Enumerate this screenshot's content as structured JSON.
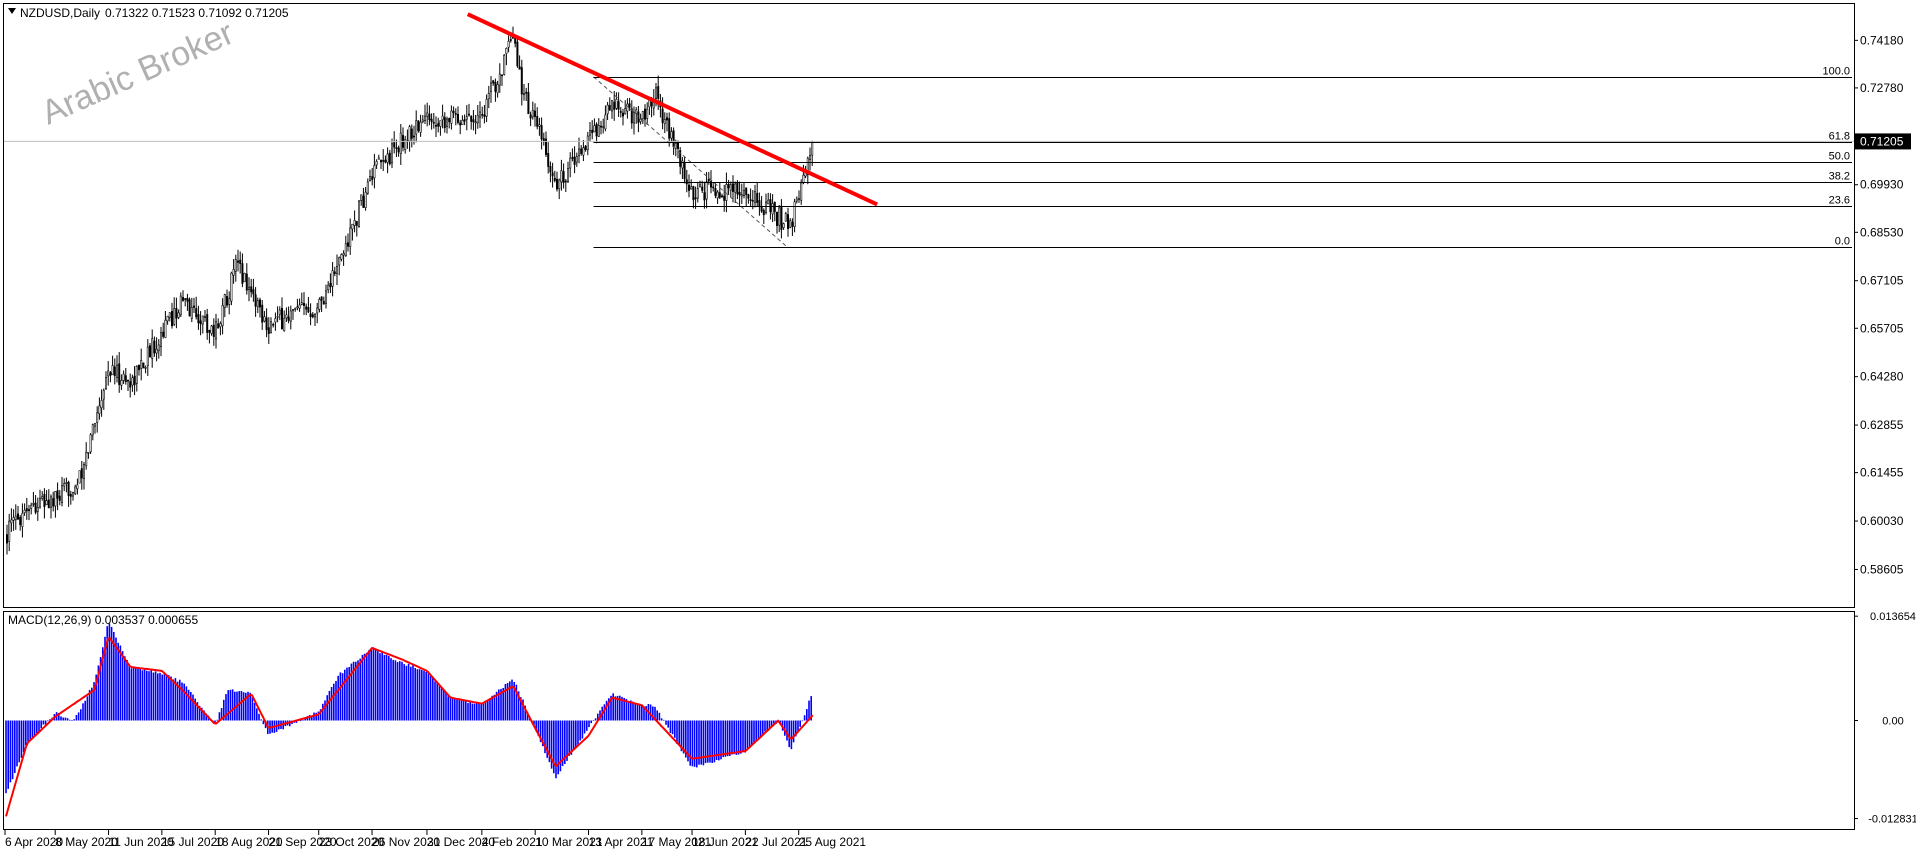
{
  "header": {
    "symbol": "NZDUSD,Daily",
    "ohlc": "0.71322 0.71523 0.71092 0.71205"
  },
  "watermark": "Arabic Broker",
  "price_axis": {
    "ticks": [
      "0.74180",
      "0.72780",
      "0.71205",
      "0.69930",
      "0.68530",
      "0.67105",
      "0.65705",
      "0.64280",
      "0.62855",
      "0.61455",
      "0.60030",
      "0.58605"
    ],
    "current": "0.71205"
  },
  "macd": {
    "label": "MACD(12,26,9) 0.003537 0.000655",
    "ticks": [
      "0.013654",
      "0.00",
      "-0.012831"
    ]
  },
  "fib_labels": [
    "100.0",
    "61.8",
    "50.0",
    "38.2",
    "23.6",
    "0.0"
  ],
  "time_axis": [
    "6 Apr 2020",
    "8 May 2020",
    "11 Jun 2020",
    "15 Jul 2020",
    "18 Aug 2020",
    "21 Sep 2020",
    "23 Oct 2020",
    "26 Nov 2020",
    "31 Dec 2020",
    "4 Feb 2021",
    "10 Mar 2021",
    "13 Apr 2021",
    "17 May 2021",
    "18 Jun 2021",
    "22 Jul 2021",
    "25 Aug 2021"
  ],
  "colors": {
    "trendline": "#ff0000",
    "histogram": "#0000ff",
    "signal": "#ff0000",
    "candles": "#000000"
  },
  "chart_data": {
    "type": "candlestick",
    "symbol": "NZDUSD",
    "timeframe": "Daily",
    "price_range": [
      0.575,
      0.7525
    ],
    "close_path": [
      {
        "date": "6 Apr 2020",
        "close": 0.596
      },
      {
        "date": "20 Apr 2020",
        "close": 0.605
      },
      {
        "date": "8 May 2020",
        "close": 0.606
      },
      {
        "date": "25 May 2020",
        "close": 0.613
      },
      {
        "date": "2 Jun 2020",
        "close": 0.63
      },
      {
        "date": "11 Jun 2020",
        "close": 0.645
      },
      {
        "date": "25 Jun 2020",
        "close": 0.641
      },
      {
        "date": "15 Jul 2020",
        "close": 0.656
      },
      {
        "date": "28 Jul 2020",
        "close": 0.665
      },
      {
        "date": "18 Aug 2020",
        "close": 0.656
      },
      {
        "date": "1 Sep 2020",
        "close": 0.676
      },
      {
        "date": "21 Sep 2020",
        "close": 0.658
      },
      {
        "date": "6 Oct 2020",
        "close": 0.661
      },
      {
        "date": "23 Oct 2020",
        "close": 0.664
      },
      {
        "date": "5 Nov 2020",
        "close": 0.676
      },
      {
        "date": "26 Nov 2020",
        "close": 0.702
      },
      {
        "date": "15 Dec 2020",
        "close": 0.712
      },
      {
        "date": "31 Dec 2020",
        "close": 0.719
      },
      {
        "date": "15 Jan 2021",
        "close": 0.719
      },
      {
        "date": "4 Feb 2021",
        "close": 0.72
      },
      {
        "date": "24 Feb 2021",
        "close": 0.742
      },
      {
        "date": "3 Mar 2021",
        "close": 0.725
      },
      {
        "date": "10 Mar 2021",
        "close": 0.718
      },
      {
        "date": "23 Mar 2021",
        "close": 0.699
      },
      {
        "date": "13 Apr 2021",
        "close": 0.713
      },
      {
        "date": "28 Apr 2021",
        "close": 0.722
      },
      {
        "date": "17 May 2021",
        "close": 0.719
      },
      {
        "date": "25 May 2021",
        "close": 0.727
      },
      {
        "date": "18 Jun 2021",
        "close": 0.696
      },
      {
        "date": "1 Jul 2021",
        "close": 0.698
      },
      {
        "date": "22 Jul 2021",
        "close": 0.697
      },
      {
        "date": "20 Aug 2021",
        "close": 0.687
      },
      {
        "date": "25 Aug 2021",
        "close": 0.697
      },
      {
        "date": "3 Sep 2021",
        "close": 0.712
      }
    ],
    "fibonacci": {
      "high": 0.7311,
      "low": 0.6811,
      "levels": [
        {
          "label": "100.0",
          "price": 0.7311
        },
        {
          "label": "61.8",
          "price": 0.712
        },
        {
          "label": "50.0",
          "price": 0.7061
        },
        {
          "label": "38.2",
          "price": 0.7002
        },
        {
          "label": "23.6",
          "price": 0.6929
        },
        {
          "label": "0.0",
          "price": 0.6811
        }
      ]
    },
    "trendline": {
      "start": {
        "date": "26 Jan 2021",
        "price": 0.7495
      },
      "end": {
        "date": "14 Oct 2021",
        "price": 0.6935
      }
    },
    "macd": {
      "range": [
        -0.0142,
        0.0142
      ],
      "histogram": [
        {
          "date": "6 Apr 2020",
          "value": -0.01
        },
        {
          "date": "20 Apr 2020",
          "value": -0.003
        },
        {
          "date": "8 May 2020",
          "value": 0.001
        },
        {
          "date": "20 May 2020",
          "value": 0.0
        },
        {
          "date": "2 Jun 2020",
          "value": 0.005
        },
        {
          "date": "11 Jun 2020",
          "value": 0.013
        },
        {
          "date": "25 Jun 2020",
          "value": 0.007
        },
        {
          "date": "15 Jul 2020",
          "value": 0.0062
        },
        {
          "date": "28 Jul 2020",
          "value": 0.005
        },
        {
          "date": "18 Aug 2020",
          "value": -0.0005
        },
        {
          "date": "26 Aug 2020",
          "value": 0.004
        },
        {
          "date": "10 Sep 2020",
          "value": 0.0035
        },
        {
          "date": "21 Sep 2020",
          "value": -0.002
        },
        {
          "date": "6 Oct 2020",
          "value": -0.0005
        },
        {
          "date": "23 Oct 2020",
          "value": 0.0012
        },
        {
          "date": "5 Nov 2020",
          "value": 0.006
        },
        {
          "date": "26 Nov 2020",
          "value": 0.0095
        },
        {
          "date": "15 Dec 2020",
          "value": 0.0075
        },
        {
          "date": "31 Dec 2020",
          "value": 0.0065
        },
        {
          "date": "15 Jan 2021",
          "value": 0.003
        },
        {
          "date": "4 Feb 2021",
          "value": 0.002
        },
        {
          "date": "24 Feb 2021",
          "value": 0.0055
        },
        {
          "date": "10 Mar 2021",
          "value": -0.001
        },
        {
          "date": "23 Mar 2021",
          "value": -0.0075
        },
        {
          "date": "13 Apr 2021",
          "value": -0.001
        },
        {
          "date": "28 Apr 2021",
          "value": 0.0035
        },
        {
          "date": "17 May 2021",
          "value": 0.002
        },
        {
          "date": "25 May 2021",
          "value": 0.002
        },
        {
          "date": "18 Jun 2021",
          "value": -0.0062
        },
        {
          "date": "22 Jul 2021",
          "value": -0.004
        },
        {
          "date": "12 Aug 2021",
          "value": 0.0
        },
        {
          "date": "20 Aug 2021",
          "value": -0.004
        },
        {
          "date": "3 Sep 2021",
          "value": 0.0038
        }
      ],
      "signal": [
        {
          "date": "6 Apr 2020",
          "value": -0.013
        },
        {
          "date": "20 Apr 2020",
          "value": -0.003
        },
        {
          "date": "8 May 2020",
          "value": 0.0005
        },
        {
          "date": "2 Jun 2020",
          "value": 0.004
        },
        {
          "date": "11 Jun 2020",
          "value": 0.011
        },
        {
          "date": "25 Jun 2020",
          "value": 0.007
        },
        {
          "date": "15 Jul 2020",
          "value": 0.0065
        },
        {
          "date": "28 Jul 2020",
          "value": 0.004
        },
        {
          "date": "18 Aug 2020",
          "value": -0.0005
        },
        {
          "date": "10 Sep 2020",
          "value": 0.0035
        },
        {
          "date": "21 Sep 2020",
          "value": -0.001
        },
        {
          "date": "23 Oct 2020",
          "value": 0.0008
        },
        {
          "date": "26 Nov 2020",
          "value": 0.0095
        },
        {
          "date": "15 Dec 2020",
          "value": 0.008
        },
        {
          "date": "31 Dec 2020",
          "value": 0.0065
        },
        {
          "date": "15 Jan 2021",
          "value": 0.003
        },
        {
          "date": "4 Feb 2021",
          "value": 0.0022
        },
        {
          "date": "24 Feb 2021",
          "value": 0.0045
        },
        {
          "date": "10 Mar 2021",
          "value": -0.001
        },
        {
          "date": "23 Mar 2021",
          "value": -0.006
        },
        {
          "date": "13 Apr 2021",
          "value": -0.002
        },
        {
          "date": "28 Apr 2021",
          "value": 0.003
        },
        {
          "date": "17 May 2021",
          "value": 0.002
        },
        {
          "date": "18 Jun 2021",
          "value": -0.005
        },
        {
          "date": "22 Jul 2021",
          "value": -0.004
        },
        {
          "date": "12 Aug 2021",
          "value": 0.0
        },
        {
          "date": "20 Aug 2021",
          "value": -0.0025
        },
        {
          "date": "3 Sep 2021",
          "value": 0.0007
        }
      ]
    }
  }
}
